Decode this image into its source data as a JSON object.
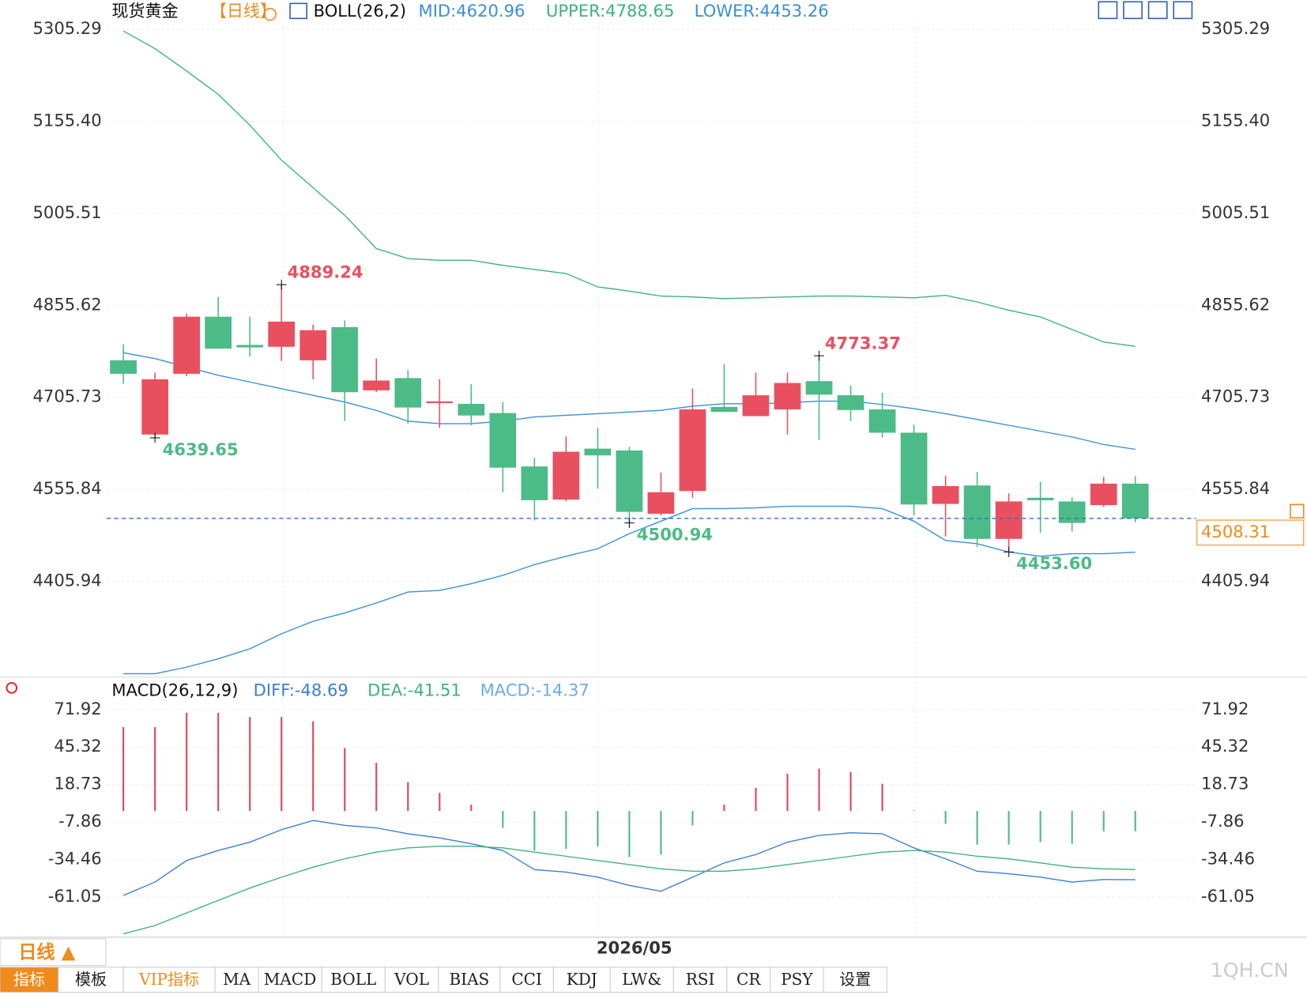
{
  "chart_data": [
    {
      "type": "candlestick",
      "title": "现货黄金",
      "period": "【日线】",
      "categories": [
        null,
        null,
        null,
        null,
        null,
        null,
        null,
        null,
        null,
        null,
        null,
        null,
        null,
        null,
        null,
        null,
        "2026/05",
        null,
        null,
        null,
        null,
        null,
        null,
        null,
        null,
        null,
        null,
        null,
        null,
        null,
        null,
        null,
        null
      ],
      "open": [
        4766,
        4645,
        4744,
        4837,
        4791,
        4788,
        4766,
        4820,
        4717,
        4737,
        4697,
        4695,
        4680,
        4593,
        4539,
        4622,
        4619,
        4516,
        4553,
        4690,
        4675,
        4686,
        4732,
        4709,
        4686,
        4648,
        4532,
        4562,
        4475,
        4542,
        4536,
        4530,
        4565
      ],
      "high": [
        4792,
        4746,
        4842,
        4869,
        4837,
        4889.24,
        4824,
        4831,
        4769,
        4750,
        4735,
        4727,
        4698,
        4607,
        4642,
        4656,
        4625,
        4583,
        4720,
        4760,
        4746,
        4746,
        4773.37,
        4725,
        4713,
        4661,
        4578,
        4584,
        4549,
        4568,
        4543,
        4576,
        4577
      ],
      "low": [
        4728,
        4639.65,
        4740,
        4785,
        4772,
        4765,
        4735,
        4667,
        4714,
        4663,
        4656,
        4660,
        4551,
        4505,
        4536,
        4557,
        4500.94,
        4513,
        4542,
        4682,
        4675,
        4645,
        4636,
        4667,
        4640,
        4513,
        4479,
        4462,
        4453.6,
        4485,
        4487,
        4527,
        4502
      ],
      "close": [
        4744,
        4735,
        4837,
        4785,
        4787,
        4829,
        4815,
        4714,
        4733,
        4689,
        4699,
        4676,
        4591,
        4538,
        4617,
        4611,
        4519,
        4551,
        4686,
        4682,
        4709,
        4729,
        4710,
        4685,
        4648,
        4531,
        4561,
        4475,
        4536,
        4538,
        4501,
        4565,
        4508.31
      ],
      "high_labels": [
        null,
        null,
        null,
        null,
        null,
        "4889.24",
        null,
        null,
        null,
        null,
        null,
        null,
        null,
        null,
        null,
        null,
        null,
        null,
        null,
        null,
        null,
        null,
        "4773.37",
        null,
        null,
        null,
        null,
        null,
        null,
        null,
        null,
        null,
        null
      ],
      "low_labels": [
        null,
        "4639.65",
        null,
        null,
        null,
        null,
        null,
        null,
        null,
        null,
        null,
        null,
        null,
        null,
        null,
        null,
        "4500.94",
        null,
        null,
        null,
        null,
        null,
        null,
        null,
        null,
        null,
        null,
        null,
        "4453.60",
        null,
        null,
        null,
        null
      ],
      "up_color": "#e9505f",
      "down_color": "#4dbb87",
      "overlay": {
        "name": "BOLL(26,2)",
        "series": [
          {
            "name": "MID",
            "label": "MID:4620.96",
            "color": "#3a8fd9",
            "values": [
              4778.2,
              4768.7,
              4755.1,
              4741.5,
              4730.6,
              4719.7,
              4708.9,
              4698.0,
              4684.4,
              4666.8,
              4662.7,
              4662.7,
              4666.8,
              4673.6,
              4676.3,
              4679.0,
              4681.7,
              4684.4,
              4691.2,
              4695.3,
              4695.3,
              4696.7,
              4699.4,
              4699.4,
              4694.0,
              4687.2,
              4679.0,
              4669.5,
              4660.0,
              4650.5,
              4641.0,
              4628.8,
              4620.96
            ]
          },
          {
            "name": "UPPER",
            "label": "UPPER:4788.65",
            "color": "#3cb37c",
            "values": [
              5302.6,
              5274.0,
              5237.4,
              5199.3,
              5149.1,
              5092.0,
              5047.2,
              5002.3,
              4948.0,
              4931.7,
              4929.0,
              4929.0,
              4920.8,
              4914.0,
              4907.3,
              4885.5,
              4878.7,
              4870.6,
              4869.2,
              4866.5,
              4867.8,
              4869.2,
              4870.6,
              4870.6,
              4869.2,
              4867.8,
              4871.9,
              4861.0,
              4847.5,
              4836.6,
              4816.2,
              4795.8,
              4788.65
            ]
          },
          {
            "name": "LOWER",
            "label": "LOWER:4453.26",
            "color": "#3a8fd9",
            "values": [
              4255.2,
              4255.2,
              4266.0,
              4279.6,
              4295.9,
              4320.4,
              4340.7,
              4354.3,
              4370.6,
              4388.3,
              4391.0,
              4401.9,
              4415.5,
              4433.1,
              4446.7,
              4459.0,
              4483.4,
              4503.8,
              4524.2,
              4524.2,
              4525.5,
              4528.2,
              4528.2,
              4528.2,
              4524.2,
              4503.8,
              4472.5,
              4467.1,
              4453.5,
              4446.7,
              4450.8,
              4450.8,
              4453.26
            ]
          }
        ]
      },
      "ylim": [
        4249.8,
        5318.9
      ],
      "yticks": [
        5305.29,
        {
          "value": 5155.4,
          "label": "5155.40"
        },
        5005.51,
        4855.62,
        4705.73,
        4555.84,
        4405.94
      ],
      "grid": true
    },
    {
      "type": "macd",
      "title": "MACD(26,12,9)",
      "series": [
        {
          "name": "DIFF",
          "label": "DIFF:-48.69",
          "type": "line",
          "color": "#3a7fd5",
          "values": [
            -59.9,
            -50.4,
            -35.1,
            -28.0,
            -22.1,
            -13.2,
            -6.7,
            -10.2,
            -12.0,
            -16.1,
            -19.1,
            -23.2,
            -28.0,
            -41.6,
            -43.3,
            -46.9,
            -52.8,
            -56.9,
            -46.9,
            -36.8,
            -30.9,
            -22.1,
            -17.3,
            -15.5,
            -16.1,
            -26.2,
            -33.9,
            -42.7,
            -44.5,
            -46.9,
            -50.4,
            -48.6,
            -48.69
          ]
        },
        {
          "name": "DEA",
          "label": "DEA:-41.51",
          "type": "line",
          "color": "#3cb37c",
          "values": [
            -87.1,
            -81.2,
            -72.3,
            -63.4,
            -54.6,
            -46.9,
            -39.8,
            -33.9,
            -29.2,
            -26.2,
            -25.0,
            -25.0,
            -26.2,
            -29.2,
            -32.1,
            -35.1,
            -38.0,
            -41.0,
            -42.7,
            -42.7,
            -41.0,
            -38.0,
            -35.1,
            -32.1,
            -29.2,
            -28.0,
            -29.2,
            -32.1,
            -33.9,
            -36.8,
            -39.8,
            -41.0,
            -41.51
          ]
        },
        {
          "name": "MACD",
          "label": "MACD:-14.37",
          "type": "bar",
          "color": "#6aaee6",
          "up_color": "#d9475a",
          "down_color": "#4dbb87",
          "values": [
            59.5,
            59.5,
            69.6,
            69.6,
            66.6,
            66.6,
            63.6,
            44.7,
            34.1,
            20.5,
            12.8,
            4.5,
            -12.0,
            -28.0,
            -26.8,
            -25.0,
            -32.7,
            -30.9,
            -10.2,
            4.5,
            16.4,
            26.4,
            30.0,
            27.6,
            19.3,
            0.4,
            -9.1,
            -23.8,
            -23.8,
            -22.0,
            -23.2,
            -14.4,
            -14.37
          ]
        }
      ],
      "ylim": [
        -88.3,
        78.4
      ],
      "yticks": [
        71.92,
        45.32,
        18.73,
        -7.86,
        -34.46,
        -61.05
      ],
      "grid": true
    }
  ],
  "toolbar": {
    "period": "日线 ▲",
    "tabs": [
      "指标",
      "模板",
      "VIP指标",
      "MA",
      "MACD",
      "BOLL",
      "VOL",
      "BIAS",
      "CCI",
      "KDJ",
      "LW&",
      "RSI",
      "CR",
      "PSY",
      "设置"
    ]
  },
  "watermark": "1QH.CN"
}
